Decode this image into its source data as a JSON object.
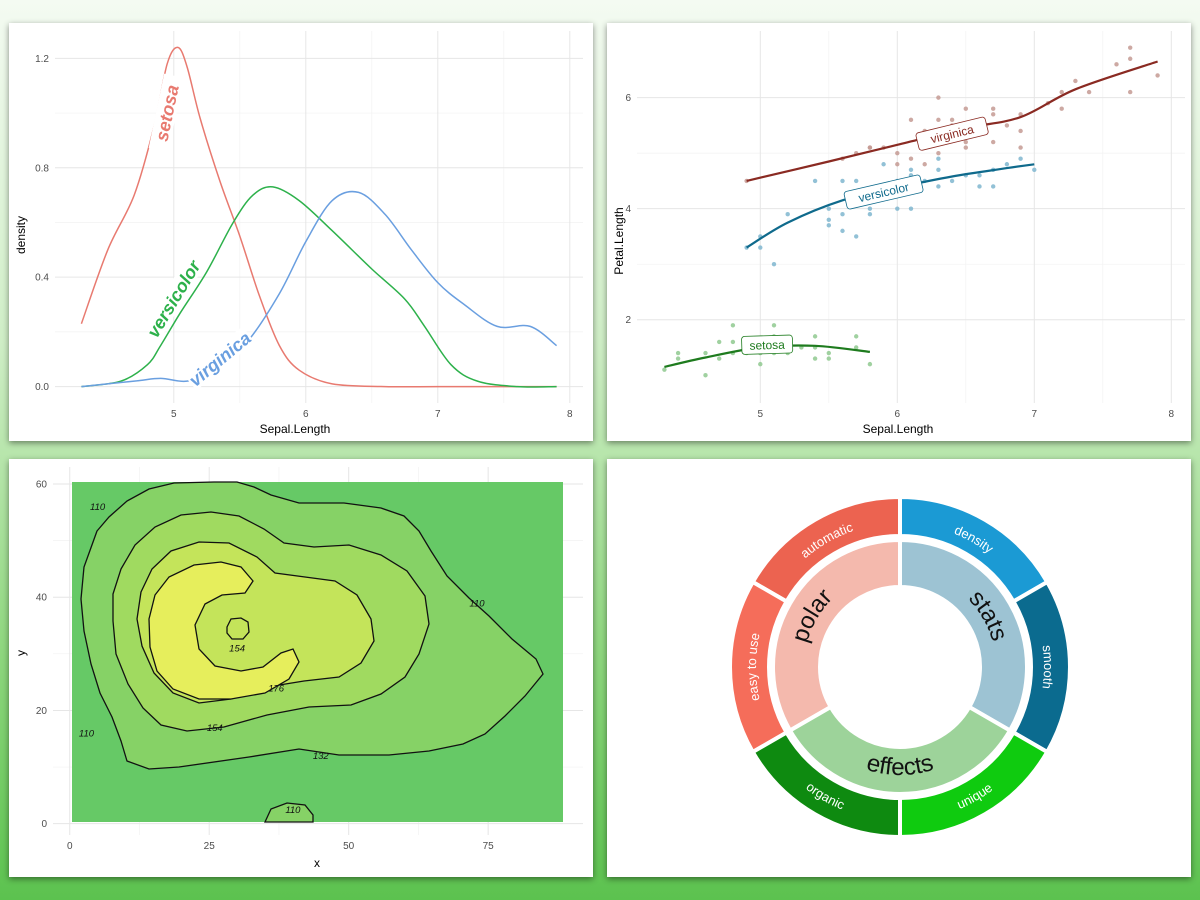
{
  "chart_data": [
    {
      "type": "line",
      "xlabel": "Sepal.Length",
      "ylabel": "density",
      "xlim": [
        4.1,
        8.1
      ],
      "ylim": [
        -0.06,
        1.3
      ],
      "x_ticks": [
        5,
        6,
        7,
        8
      ],
      "y_ticks": [
        0.0,
        0.4,
        0.8,
        1.2
      ],
      "y_tick_labels": [
        "0.0",
        "0.4",
        "0.8",
        "1.2"
      ],
      "grid": true,
      "legend": "direct-labels",
      "series": [
        {
          "name": "setosa",
          "color": "#e87a70",
          "x": [
            4.3,
            4.5,
            4.7,
            4.85,
            4.95,
            5.03,
            5.1,
            5.2,
            5.35,
            5.5,
            5.65,
            5.8,
            5.95,
            6.2,
            6.6,
            7.0,
            7.5,
            7.9
          ],
          "y": [
            0.23,
            0.5,
            0.7,
            0.95,
            1.18,
            1.24,
            1.17,
            0.98,
            0.75,
            0.55,
            0.33,
            0.15,
            0.06,
            0.01,
            0.0,
            0.0,
            0.0,
            0.0
          ],
          "label_x": 4.95,
          "label_y": 1.0
        },
        {
          "name": "versicolor",
          "color": "#2db14b",
          "x": [
            4.3,
            4.6,
            4.8,
            4.9,
            5.05,
            5.25,
            5.45,
            5.6,
            5.75,
            5.95,
            6.2,
            6.5,
            6.75,
            6.9,
            7.1,
            7.3,
            7.6,
            7.9
          ],
          "y": [
            0.0,
            0.02,
            0.08,
            0.15,
            0.27,
            0.42,
            0.6,
            0.7,
            0.73,
            0.68,
            0.57,
            0.43,
            0.32,
            0.22,
            0.08,
            0.02,
            0.0,
            0.0
          ],
          "label_x": 5.0,
          "label_y": 0.32
        },
        {
          "name": "virginica",
          "color": "#6a9fe0",
          "x": [
            4.3,
            4.7,
            4.9,
            5.1,
            5.3,
            5.55,
            5.8,
            6.0,
            6.2,
            6.4,
            6.6,
            6.8,
            7.0,
            7.2,
            7.45,
            7.7,
            7.9
          ],
          "y": [
            0.0,
            0.02,
            0.03,
            0.02,
            0.06,
            0.16,
            0.34,
            0.53,
            0.68,
            0.71,
            0.63,
            0.5,
            0.38,
            0.3,
            0.22,
            0.22,
            0.15
          ],
          "label_x": 5.35,
          "label_y": 0.1
        }
      ]
    },
    {
      "type": "scatter",
      "xlabel": "Sepal.Length",
      "ylabel": "Petal.Length",
      "xlim": [
        4.1,
        8.1
      ],
      "ylim": [
        0.5,
        7.2
      ],
      "x_ticks": [
        5,
        6,
        7,
        8
      ],
      "y_ticks": [
        2,
        4,
        6
      ],
      "grid": true,
      "legend": "direct-labels",
      "series": [
        {
          "name": "setosa",
          "color": "#1e7b1e",
          "point_color": "#8fc98f",
          "points": [
            [
              4.3,
              1.1
            ],
            [
              4.4,
              1.3
            ],
            [
              4.4,
              1.4
            ],
            [
              4.6,
              1.0
            ],
            [
              4.6,
              1.4
            ],
            [
              4.7,
              1.3
            ],
            [
              4.8,
              1.6
            ],
            [
              4.8,
              1.4
            ],
            [
              4.9,
              1.4
            ],
            [
              4.9,
              1.5
            ],
            [
              5.0,
              1.6
            ],
            [
              5.0,
              1.4
            ],
            [
              5.0,
              1.2
            ],
            [
              5.1,
              1.5
            ],
            [
              5.1,
              1.7
            ],
            [
              5.1,
              1.9
            ],
            [
              5.1,
              1.4
            ],
            [
              5.2,
              1.5
            ],
            [
              5.3,
              1.5
            ],
            [
              5.4,
              1.7
            ],
            [
              5.4,
              1.5
            ],
            [
              5.4,
              1.3
            ],
            [
              5.5,
              1.4
            ],
            [
              5.5,
              1.3
            ],
            [
              5.7,
              1.7
            ],
            [
              5.7,
              1.5
            ],
            [
              5.8,
              1.2
            ],
            [
              4.7,
              1.6
            ],
            [
              5.2,
              1.4
            ],
            [
              4.8,
              1.9
            ]
          ],
          "fit_x": [
            4.3,
            4.6,
            5.0,
            5.4,
            5.8
          ],
          "fit_y": [
            1.15,
            1.32,
            1.5,
            1.53,
            1.42
          ],
          "label_x": 5.05,
          "label_y": 1.55
        },
        {
          "name": "versicolor",
          "color": "#0f6a8c",
          "point_color": "#7fb6cf",
          "points": [
            [
              4.9,
              3.3
            ],
            [
              5.0,
              3.5
            ],
            [
              5.0,
              3.3
            ],
            [
              5.1,
              3.0
            ],
            [
              5.2,
              3.9
            ],
            [
              5.5,
              4.0
            ],
            [
              5.5,
              3.8
            ],
            [
              5.5,
              3.7
            ],
            [
              5.6,
              4.5
            ],
            [
              5.6,
              3.9
            ],
            [
              5.6,
              3.6
            ],
            [
              5.7,
              4.5
            ],
            [
              5.7,
              4.2
            ],
            [
              5.8,
              4.0
            ],
            [
              5.8,
              3.9
            ],
            [
              5.9,
              4.8
            ],
            [
              6.0,
              4.5
            ],
            [
              6.0,
              4.0
            ],
            [
              6.1,
              4.7
            ],
            [
              6.1,
              4.0
            ],
            [
              6.2,
              4.5
            ],
            [
              6.3,
              4.9
            ],
            [
              6.3,
              4.7
            ],
            [
              6.4,
              4.5
            ],
            [
              6.5,
              4.6
            ],
            [
              6.6,
              4.6
            ],
            [
              6.7,
              4.7
            ],
            [
              6.7,
              4.4
            ],
            [
              6.8,
              4.8
            ],
            [
              6.9,
              4.9
            ],
            [
              7.0,
              4.7
            ],
            [
              5.4,
              4.5
            ],
            [
              5.7,
              3.5
            ],
            [
              6.1,
              4.6
            ],
            [
              6.3,
              4.4
            ],
            [
              6.6,
              4.4
            ]
          ],
          "fit_x": [
            4.9,
            5.2,
            5.6,
            6.0,
            6.4,
            6.8,
            7.0
          ],
          "fit_y": [
            3.3,
            3.75,
            4.15,
            4.38,
            4.58,
            4.73,
            4.8
          ],
          "label_x": 5.9,
          "label_y": 4.3
        },
        {
          "name": "virginica",
          "color": "#8a2a22",
          "point_color": "#c49a93",
          "points": [
            [
              4.9,
              4.5
            ],
            [
              5.6,
              4.9
            ],
            [
              5.7,
              5.0
            ],
            [
              5.8,
              5.1
            ],
            [
              5.8,
              5.1
            ],
            [
              5.9,
              5.1
            ],
            [
              6.0,
              4.8
            ],
            [
              6.0,
              5.0
            ],
            [
              6.1,
              5.6
            ],
            [
              6.2,
              4.8
            ],
            [
              6.3,
              5.6
            ],
            [
              6.3,
              5.0
            ],
            [
              6.3,
              6.0
            ],
            [
              6.4,
              5.3
            ],
            [
              6.4,
              5.6
            ],
            [
              6.5,
              5.1
            ],
            [
              6.5,
              5.8
            ],
            [
              6.5,
              5.2
            ],
            [
              6.7,
              5.7
            ],
            [
              6.7,
              5.2
            ],
            [
              6.7,
              5.8
            ],
            [
              6.8,
              5.5
            ],
            [
              6.9,
              5.1
            ],
            [
              6.9,
              5.7
            ],
            [
              7.1,
              5.9
            ],
            [
              7.2,
              5.8
            ],
            [
              7.2,
              6.1
            ],
            [
              7.3,
              6.3
            ],
            [
              7.4,
              6.1
            ],
            [
              7.6,
              6.6
            ],
            [
              7.7,
              6.7
            ],
            [
              7.7,
              6.9
            ],
            [
              7.7,
              6.1
            ],
            [
              7.9,
              6.4
            ],
            [
              6.2,
              5.4
            ],
            [
              6.4,
              5.5
            ],
            [
              6.9,
              5.4
            ],
            [
              6.1,
              4.9
            ]
          ],
          "fit_x": [
            4.9,
            5.5,
            6.0,
            6.5,
            6.9,
            7.3,
            7.9
          ],
          "fit_y": [
            4.5,
            4.85,
            5.15,
            5.45,
            5.65,
            6.15,
            6.65
          ],
          "label_x": 6.4,
          "label_y": 5.35
        }
      ]
    },
    {
      "type": "heatmap",
      "subtype": "filled-contour",
      "xlabel": "x",
      "ylabel": "y",
      "xlim": [
        -3,
        92
      ],
      "ylim": [
        -2,
        63
      ],
      "x_ticks": [
        0,
        25,
        50,
        75
      ],
      "y_ticks": [
        0,
        20,
        40,
        60
      ],
      "grid": true,
      "color_low": "#5cc65c",
      "color_high": "#f0f060",
      "contour_labels": [
        "110",
        "110",
        "110",
        "154",
        "176",
        "154",
        "132",
        "110"
      ],
      "contour_label_positions": [
        [
          5,
          56
        ],
        [
          73,
          39
        ],
        [
          3,
          16
        ],
        [
          30,
          31
        ],
        [
          37,
          24
        ],
        [
          26,
          17
        ],
        [
          45,
          12
        ],
        [
          40,
          2.5
        ]
      ]
    },
    {
      "type": "pie",
      "subtype": "sunburst",
      "inner": [
        {
          "label": "polar",
          "value": 1,
          "color": "#f4b9ad"
        },
        {
          "label": "stats",
          "value": 1,
          "color": "#9dc3d3"
        },
        {
          "label": "effects",
          "value": 1,
          "color": "#9dd39a"
        }
      ],
      "outer": [
        {
          "label": "automatic",
          "parent": "polar",
          "color": "#ec6350"
        },
        {
          "label": "easy to use",
          "parent": "polar",
          "color": "#f56d5a"
        },
        {
          "label": "density",
          "parent": "stats",
          "color": "#1b9ad4"
        },
        {
          "label": "smooth",
          "parent": "stats",
          "color": "#0b6b8f"
        },
        {
          "label": "unique",
          "parent": "effects",
          "color": "#0fcb0f"
        },
        {
          "label": "organic",
          "parent": "effects",
          "color": "#0e8a10"
        }
      ]
    }
  ]
}
